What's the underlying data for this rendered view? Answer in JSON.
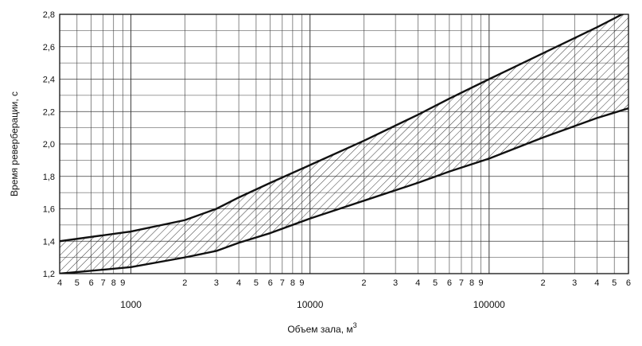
{
  "chart_data": {
    "type": "area",
    "title": "",
    "xlabel": "Объем зала, м",
    "xlabel_superscript": "3",
    "ylabel": "Время реверберации, с",
    "x_scale": "log",
    "xlim": [
      400,
      600000
    ],
    "ylim": [
      1.2,
      2.8
    ],
    "y_ticks": [
      "1,2",
      "1,4",
      "1,6",
      "1,8",
      "2,0",
      "2,2",
      "2,4",
      "2,6",
      "2,8"
    ],
    "y_tick_values": [
      1.2,
      1.4,
      1.6,
      1.8,
      2.0,
      2.2,
      2.4,
      2.6,
      2.8
    ],
    "x_minor_ticks": [
      {
        "value": 400,
        "label": "4"
      },
      {
        "value": 500,
        "label": "5"
      },
      {
        "value": 600,
        "label": "6"
      },
      {
        "value": 700,
        "label": "7"
      },
      {
        "value": 800,
        "label": "8"
      },
      {
        "value": 900,
        "label": "9"
      },
      {
        "value": 2000,
        "label": "2"
      },
      {
        "value": 3000,
        "label": "3"
      },
      {
        "value": 4000,
        "label": "4"
      },
      {
        "value": 5000,
        "label": "5"
      },
      {
        "value": 6000,
        "label": "6"
      },
      {
        "value": 7000,
        "label": "7"
      },
      {
        "value": 8000,
        "label": "8"
      },
      {
        "value": 9000,
        "label": "9"
      },
      {
        "value": 20000,
        "label": "2"
      },
      {
        "value": 30000,
        "label": "3"
      },
      {
        "value": 40000,
        "label": "4"
      },
      {
        "value": 50000,
        "label": "5"
      },
      {
        "value": 60000,
        "label": "6"
      },
      {
        "value": 70000,
        "label": "7"
      },
      {
        "value": 80000,
        "label": "8"
      },
      {
        "value": 90000,
        "label": "9"
      },
      {
        "value": 200000,
        "label": "2"
      },
      {
        "value": 300000,
        "label": "3"
      },
      {
        "value": 400000,
        "label": "4"
      },
      {
        "value": 500000,
        "label": "5"
      },
      {
        "value": 600000,
        "label": "6"
      }
    ],
    "x_decade_labels": [
      {
        "value": 1000,
        "label": "1000"
      },
      {
        "value": 10000,
        "label": "10000"
      },
      {
        "value": 100000,
        "label": "100000"
      }
    ],
    "grid": true,
    "fill_pattern": "diagonal-hatch",
    "series": [
      {
        "name": "",
        "x": [
          400,
          1000,
          2000,
          3000,
          4000,
          6000,
          10000,
          20000,
          40000,
          60000,
          100000,
          200000,
          400000,
          600000
        ],
        "y": [
          1.4,
          1.46,
          1.53,
          1.6,
          1.67,
          1.76,
          1.87,
          2.02,
          2.18,
          2.28,
          2.4,
          2.56,
          2.72,
          2.82
        ]
      },
      {
        "name": "",
        "x": [
          400,
          1000,
          2000,
          3000,
          4000,
          6000,
          10000,
          20000,
          40000,
          60000,
          100000,
          200000,
          400000,
          600000
        ],
        "y": [
          1.2,
          1.24,
          1.3,
          1.34,
          1.39,
          1.45,
          1.54,
          1.65,
          1.76,
          1.83,
          1.91,
          2.04,
          2.16,
          2.22
        ]
      }
    ],
    "colors": {
      "line": "#111111",
      "grid": "#3a3a3a",
      "hatch": "#222222"
    }
  }
}
